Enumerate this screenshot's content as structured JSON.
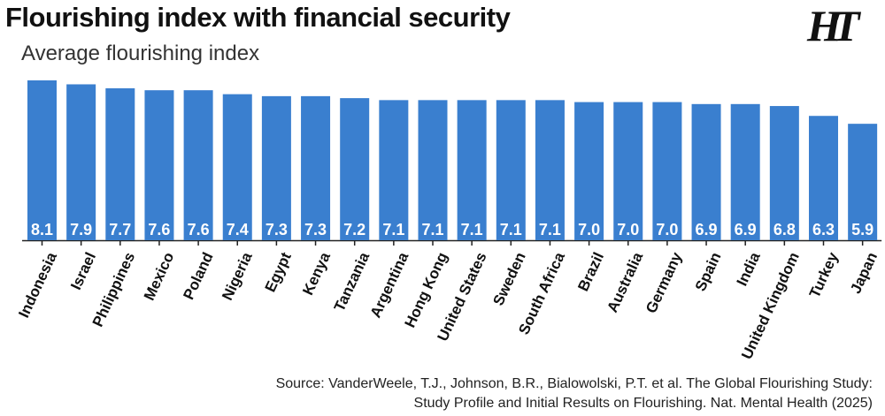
{
  "header": {
    "title": "Flourishing index with financial security",
    "subtitle": "Average flourishing index",
    "logo_text": "HT"
  },
  "source": {
    "line1": "Source: VanderWeele, T.J., Johnson, B.R., Bialowolski, P.T. et al. The Global Flourishing Study:",
    "line2": "Study Profile and Initial Results on Flourishing. Nat. Mental Health (2025)"
  },
  "colors": {
    "bar": "#3a7fcf",
    "value_label": "#ffffff",
    "axis": "#222222"
  },
  "chart_data": {
    "type": "bar",
    "title": "Flourishing index with financial security",
    "subtitle": "Average flourishing index",
    "categories": [
      "Indonesia",
      "Israel",
      "Philippines",
      "Mexico",
      "Poland",
      "Nigeria",
      "Egypt",
      "Kenya",
      "Tanzania",
      "Argentina",
      "Hong Kong",
      "United States",
      "Sweden",
      "South Africa",
      "Brazil",
      "Australia",
      "Germany",
      "Spain",
      "India",
      "United Kingdom",
      "Turkey",
      "Japan"
    ],
    "values": [
      8.1,
      7.9,
      7.7,
      7.6,
      7.6,
      7.4,
      7.3,
      7.3,
      7.2,
      7.1,
      7.1,
      7.1,
      7.1,
      7.1,
      7.0,
      7.0,
      7.0,
      6.9,
      6.9,
      6.8,
      6.3,
      5.9
    ],
    "ylim": [
      0,
      8.1
    ],
    "xlabel": "",
    "ylabel": "",
    "data_labels": true,
    "grid": false,
    "legend": "none"
  }
}
